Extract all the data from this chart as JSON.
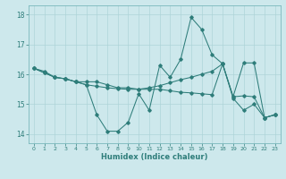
{
  "xlabel": "Humidex (Indice chaleur)",
  "bg_color": "#cde8ec",
  "line_color": "#2e7d7a",
  "grid_color": "#aed4d8",
  "spine_color": "#7ab8bc",
  "xlim": [
    -0.5,
    23.5
  ],
  "ylim": [
    13.7,
    18.3
  ],
  "yticks": [
    14,
    15,
    16,
    17,
    18
  ],
  "xticks": [
    0,
    1,
    2,
    3,
    4,
    5,
    6,
    7,
    8,
    9,
    10,
    11,
    12,
    13,
    14,
    15,
    16,
    17,
    18,
    19,
    20,
    21,
    22,
    23
  ],
  "series": [
    {
      "x": [
        0,
        1,
        2,
        3,
        4,
        5,
        6,
        7,
        8,
        9,
        10,
        11,
        12,
        13,
        14,
        15,
        16,
        17,
        18,
        19,
        20,
        21,
        22,
        23
      ],
      "y": [
        16.2,
        16.1,
        15.9,
        15.85,
        15.75,
        15.65,
        14.65,
        14.1,
        14.1,
        14.4,
        15.35,
        14.8,
        16.3,
        15.9,
        16.5,
        17.9,
        17.5,
        16.65,
        16.35,
        15.2,
        14.8,
        15.0,
        14.55,
        14.65
      ]
    },
    {
      "x": [
        0,
        1,
        2,
        3,
        4,
        5,
        6,
        7,
        8,
        9,
        10,
        11,
        12,
        13,
        14,
        15,
        16,
        17,
        18,
        19,
        20,
        21,
        22,
        23
      ],
      "y": [
        16.2,
        16.05,
        15.9,
        15.85,
        15.75,
        15.75,
        15.75,
        15.65,
        15.55,
        15.55,
        15.5,
        15.5,
        15.5,
        15.45,
        15.4,
        15.38,
        15.35,
        15.32,
        16.35,
        15.25,
        15.28,
        15.25,
        14.55,
        14.65
      ]
    },
    {
      "x": [
        0,
        1,
        2,
        3,
        4,
        5,
        6,
        7,
        8,
        9,
        10,
        11,
        12,
        13,
        14,
        15,
        16,
        17,
        18,
        19,
        20,
        21,
        22,
        23
      ],
      "y": [
        16.2,
        16.05,
        15.9,
        15.85,
        15.75,
        15.65,
        15.6,
        15.55,
        15.52,
        15.5,
        15.5,
        15.55,
        15.62,
        15.72,
        15.82,
        15.9,
        16.0,
        16.1,
        16.35,
        15.25,
        16.38,
        16.38,
        14.55,
        14.65
      ]
    }
  ]
}
